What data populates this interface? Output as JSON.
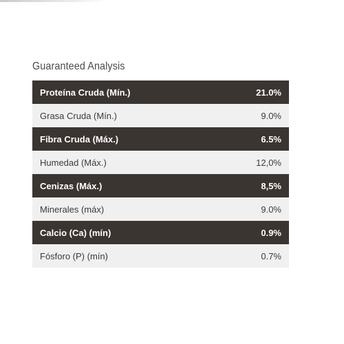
{
  "heading": "Guaranteed Analysis",
  "rows": [
    {
      "label": "Proteína Cruda (Mín.)",
      "value": "21.0%"
    },
    {
      "label": "Grasa Cruda (Mín.)",
      "value": "9.0%"
    },
    {
      "label": "Fibra Cruda (Máx.)",
      "value": "6.5%"
    },
    {
      "label": "Humedad (Máx.)",
      "value": "12,0%"
    },
    {
      "label": "Cenizas (Máx.)",
      "value": "8,5%"
    },
    {
      "label": "Minerales (máx)",
      "value": "9.0%"
    },
    {
      "label": "Calcio (Ca) (mín)",
      "value": "0.9%"
    },
    {
      "label": "Fósforo (P) (mín)",
      "value": "0.7%"
    }
  ],
  "colors": {
    "dark_row": "#3b3532",
    "light_row": "#f1f0f0",
    "dark_text": "#ffffff",
    "light_text": "#3a3a3a"
  }
}
